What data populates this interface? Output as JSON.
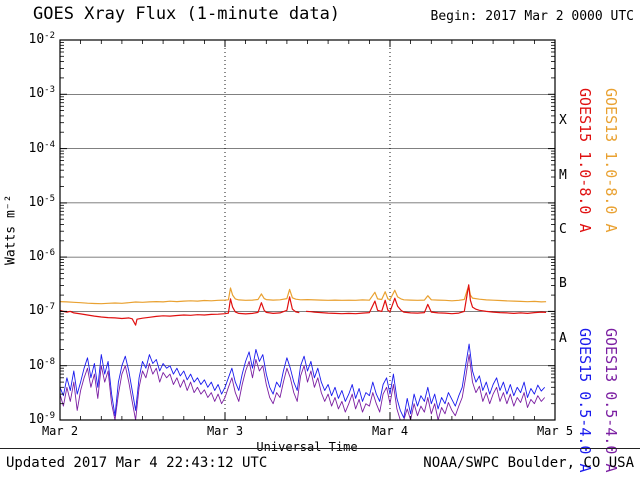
{
  "footer": {
    "updated": "Updated 2017 Mar 4 22:43:12 UTC",
    "source": "NOAA/SWPC Boulder, CO USA"
  },
  "chart_data": {
    "type": "line",
    "title": "GOES Xray Flux (1-minute data)",
    "begin_label": "Begin: 2017 Mar 2 0000 UTC",
    "background": "#ffffff",
    "x_axis": {
      "label": "Universal Time",
      "range_hours": [
        0,
        72
      ],
      "major_tick_hours": 24,
      "minor_tick_hours": 3,
      "ticks": [
        {
          "hour": 0,
          "label": "Mar 2"
        },
        {
          "hour": 24,
          "label": "Mar 3"
        },
        {
          "hour": 48,
          "label": "Mar 4"
        },
        {
          "hour": 72,
          "label": "Mar 5"
        }
      ],
      "day_gridline_hours": [
        24,
        48
      ]
    },
    "y_axis": {
      "label": "Watts m⁻²",
      "log10_range": [
        -9,
        -2
      ],
      "tick_exponents": [
        -2,
        -3,
        -4,
        -5,
        -6,
        -7,
        -8,
        -9
      ],
      "gridline_exponents": [
        -3,
        -4,
        -5,
        -6,
        -7,
        -8
      ]
    },
    "flare_classes": [
      {
        "label": "X",
        "log10_mid": -3.5
      },
      {
        "label": "M",
        "log10_mid": -4.5
      },
      {
        "label": "C",
        "log10_mid": -5.5
      },
      {
        "label": "B",
        "log10_mid": -6.5
      },
      {
        "label": "A",
        "log10_mid": -7.5
      }
    ],
    "series": [
      {
        "name": "goes15-long",
        "label": "GOES15 1.0-8.0 A",
        "color": "#e01010",
        "stroke_width": 1.2,
        "points": [
          [
            0,
            1.05e-07
          ],
          [
            0.5,
            1e-07
          ],
          [
            1,
            9.7e-08
          ],
          [
            1.5,
            1e-07
          ],
          [
            2,
            9.4e-08
          ],
          [
            3,
            9e-08
          ],
          [
            4,
            8.6e-08
          ],
          [
            5,
            8.2e-08
          ],
          [
            6,
            7.9e-08
          ],
          [
            7,
            7.7e-08
          ],
          [
            8,
            7.6e-08
          ],
          [
            9,
            7.4e-08
          ],
          [
            10,
            7.6e-08
          ],
          [
            10.5,
            7.3e-08
          ],
          [
            11,
            5.6e-08
          ],
          [
            11.2,
            7.2e-08
          ],
          [
            12,
            7.5e-08
          ],
          [
            13,
            7.8e-08
          ],
          [
            14,
            8.1e-08
          ],
          [
            15,
            8.3e-08
          ],
          [
            16,
            8.2e-08
          ],
          [
            17,
            8.4e-08
          ],
          [
            18,
            8.6e-08
          ],
          [
            19,
            8.5e-08
          ],
          [
            20,
            8.7e-08
          ],
          [
            21,
            8.6e-08
          ],
          [
            22,
            8.8e-08
          ],
          [
            23,
            8.9e-08
          ],
          [
            24,
            9.1e-08
          ],
          [
            24.5,
            9.3e-08
          ],
          [
            24.8,
            1.7e-07
          ],
          [
            25.1,
            1.2e-07
          ],
          [
            25.5,
            9.8e-08
          ],
          [
            26,
            9.2e-08
          ],
          [
            27,
            9e-08
          ],
          [
            28,
            9.2e-08
          ],
          [
            28.8,
            9.6e-08
          ],
          [
            29.3,
            1.45e-07
          ],
          [
            29.7,
            1.05e-07
          ],
          [
            30,
            9.6e-08
          ],
          [
            31,
            9.2e-08
          ],
          [
            32,
            9.4e-08
          ],
          [
            33,
            1.05e-07
          ],
          [
            33.4,
            1.85e-07
          ],
          [
            33.8,
            1.1e-07
          ],
          [
            34.3,
            9.8e-08
          ],
          [
            34.8,
            9.5e-08
          ],
          [
            35,
            null
          ],
          [
            35.8,
            1e-07
          ],
          [
            36.5,
            9.9e-08
          ],
          [
            37,
            9.7e-08
          ],
          [
            38,
            9.5e-08
          ],
          [
            39,
            9.3e-08
          ],
          [
            40,
            9.2e-08
          ],
          [
            41,
            9.1e-08
          ],
          [
            42,
            9.2e-08
          ],
          [
            43,
            9.1e-08
          ],
          [
            44,
            9.3e-08
          ],
          [
            45,
            9.5e-08
          ],
          [
            45.8,
            1.55e-07
          ],
          [
            46.2,
            1.05e-07
          ],
          [
            46.8,
            1e-07
          ],
          [
            47.3,
            1.6e-07
          ],
          [
            47.7,
            1.05e-07
          ],
          [
            48,
            9.9e-08
          ],
          [
            48.7,
            1.75e-07
          ],
          [
            49.1,
            1.25e-07
          ],
          [
            49.6,
            1.05e-07
          ],
          [
            50,
            9.7e-08
          ],
          [
            51,
            9.4e-08
          ],
          [
            52,
            9.3e-08
          ],
          [
            53,
            9.5e-08
          ],
          [
            53.5,
            1.35e-07
          ],
          [
            54,
            9.7e-08
          ],
          [
            55,
            9.4e-08
          ],
          [
            56,
            9.3e-08
          ],
          [
            57,
            9.1e-08
          ],
          [
            58,
            9.3e-08
          ],
          [
            58.8,
            1e-07
          ],
          [
            59.2,
            2e-07
          ],
          [
            59.45,
            3.1e-07
          ],
          [
            59.7,
            1.6e-07
          ],
          [
            60,
            1.2e-07
          ],
          [
            60.5,
            1.1e-07
          ],
          [
            61,
            1.05e-07
          ],
          [
            62,
            1e-07
          ],
          [
            63,
            9.7e-08
          ],
          [
            64,
            9.5e-08
          ],
          [
            65,
            9.4e-08
          ],
          [
            66,
            9.2e-08
          ],
          [
            67,
            9.4e-08
          ],
          [
            68,
            9.2e-08
          ],
          [
            69,
            9.5e-08
          ],
          [
            70,
            9.7e-08
          ],
          [
            70.7,
            9.6e-08
          ]
        ]
      },
      {
        "name": "goes13-long",
        "label": "GOES13 1.0-8.0 A",
        "color": "#e9a131",
        "stroke_width": 1.2,
        "points": [
          [
            0,
            1.52e-07
          ],
          [
            1,
            1.5e-07
          ],
          [
            2,
            1.47e-07
          ],
          [
            3,
            1.45e-07
          ],
          [
            4,
            1.42e-07
          ],
          [
            5,
            1.4e-07
          ],
          [
            6,
            1.39e-07
          ],
          [
            7,
            1.41e-07
          ],
          [
            8,
            1.43e-07
          ],
          [
            9,
            1.41e-07
          ],
          [
            10,
            1.45e-07
          ],
          [
            11,
            1.49e-07
          ],
          [
            12,
            1.47e-07
          ],
          [
            13,
            1.5e-07
          ],
          [
            14,
            1.52e-07
          ],
          [
            15,
            1.5e-07
          ],
          [
            16,
            1.54e-07
          ],
          [
            17,
            1.52e-07
          ],
          [
            18,
            1.55e-07
          ],
          [
            19,
            1.57e-07
          ],
          [
            20,
            1.55e-07
          ],
          [
            21,
            1.59e-07
          ],
          [
            22,
            1.57e-07
          ],
          [
            23,
            1.6e-07
          ],
          [
            24,
            1.62e-07
          ],
          [
            24.5,
            1.64e-07
          ],
          [
            24.8,
            2.7e-07
          ],
          [
            25.1,
            2e-07
          ],
          [
            25.5,
            1.7e-07
          ],
          [
            26,
            1.63e-07
          ],
          [
            27,
            1.6e-07
          ],
          [
            28,
            1.62e-07
          ],
          [
            28.8,
            1.66e-07
          ],
          [
            29.3,
            2.1e-07
          ],
          [
            29.7,
            1.72e-07
          ],
          [
            30,
            1.65e-07
          ],
          [
            31,
            1.62e-07
          ],
          [
            32,
            1.64e-07
          ],
          [
            33,
            1.72e-07
          ],
          [
            33.4,
            2.55e-07
          ],
          [
            33.8,
            1.78e-07
          ],
          [
            34.3,
            1.68e-07
          ],
          [
            35,
            1.64e-07
          ],
          [
            36,
            1.65e-07
          ],
          [
            37,
            1.63e-07
          ],
          [
            38,
            1.62e-07
          ],
          [
            39,
            1.6e-07
          ],
          [
            40,
            1.62e-07
          ],
          [
            41,
            1.6e-07
          ],
          [
            42,
            1.61e-07
          ],
          [
            43,
            1.6e-07
          ],
          [
            44,
            1.63e-07
          ],
          [
            45,
            1.61e-07
          ],
          [
            45.8,
            2.25e-07
          ],
          [
            46.2,
            1.7e-07
          ],
          [
            46.8,
            1.66e-07
          ],
          [
            47.3,
            2.3e-07
          ],
          [
            47.7,
            1.7e-07
          ],
          [
            48,
            1.65e-07
          ],
          [
            48.7,
            2.45e-07
          ],
          [
            49.1,
            1.85e-07
          ],
          [
            49.6,
            1.7e-07
          ],
          [
            50,
            1.64e-07
          ],
          [
            51,
            1.62e-07
          ],
          [
            52,
            1.6e-07
          ],
          [
            53,
            1.62e-07
          ],
          [
            53.5,
            1.95e-07
          ],
          [
            54,
            1.64e-07
          ],
          [
            55,
            1.62e-07
          ],
          [
            56,
            1.6e-07
          ],
          [
            57,
            1.57e-07
          ],
          [
            58,
            1.6e-07
          ],
          [
            58.8,
            1.66e-07
          ],
          [
            59.2,
            2.4e-07
          ],
          [
            59.45,
            2.95e-07
          ],
          [
            59.7,
            2e-07
          ],
          [
            60,
            1.76e-07
          ],
          [
            61,
            1.68e-07
          ],
          [
            62,
            1.63e-07
          ],
          [
            63,
            1.61e-07
          ],
          [
            64,
            1.59e-07
          ],
          [
            65,
            1.56e-07
          ],
          [
            66,
            1.55e-07
          ],
          [
            67,
            1.53e-07
          ],
          [
            68,
            1.51e-07
          ],
          [
            69,
            1.53e-07
          ],
          [
            70,
            1.5e-07
          ],
          [
            70.7,
            1.51e-07
          ]
        ]
      },
      {
        "name": "goes15-short",
        "label": "GOES15 0.5-4.0 A",
        "color": "#1a1aee",
        "stroke_width": 0.9,
        "t0": 0,
        "dt": 0.5,
        "scale": 1e-09,
        "values": [
          4,
          2.8,
          6,
          3.5,
          8,
          3,
          5,
          9,
          14,
          6,
          11,
          4,
          16,
          7,
          12,
          3,
          1.2,
          5,
          10,
          15,
          8,
          3.5,
          1.5,
          6,
          12,
          9,
          16,
          11,
          13,
          8,
          11,
          9,
          10,
          7,
          9,
          6.5,
          8,
          5.5,
          7,
          5,
          6,
          4.5,
          5.5,
          4,
          5,
          3.5,
          4.5,
          3,
          4,
          6,
          9,
          5,
          3.5,
          7,
          12,
          18,
          9,
          20,
          12,
          16,
          7,
          4,
          3,
          5,
          4,
          8,
          14,
          9,
          5,
          3.5,
          10,
          15,
          8,
          12,
          6,
          9,
          5,
          3.5,
          4.5,
          2.8,
          4,
          2.5,
          3.5,
          2.2,
          3,
          4.5,
          2.5,
          3.8,
          2.2,
          3.2,
          2.8,
          5,
          3,
          2.2,
          4.5,
          6,
          3,
          7,
          2.5,
          1.5,
          1.1,
          2.5,
          1.3,
          3,
          1.8,
          2.8,
          2.2,
          4,
          2,
          3,
          1.6,
          2.6,
          2,
          3.2,
          2.4,
          1.8,
          2.8,
          4,
          10,
          25,
          8,
          5,
          6.5,
          3.5,
          5,
          3,
          4.5,
          6,
          3.5,
          5,
          3,
          4.5,
          2.8,
          4,
          3.2,
          5,
          2.6,
          3.8,
          3,
          4.4,
          3.4,
          4
        ]
      },
      {
        "name": "goes13-short",
        "label": "GOES13 0.5-4.0 A",
        "color": "#7b1fa2",
        "stroke_width": 0.9,
        "t0": 0,
        "dt": 0.5,
        "scale": 1e-09,
        "values": [
          3,
          1.8,
          4,
          2.2,
          5,
          1.5,
          3.5,
          6,
          9,
          4,
          7,
          2.5,
          10,
          5,
          8,
          2,
          0.9,
          3,
          7,
          10,
          5,
          2.2,
          1,
          4,
          8,
          6,
          11,
          7,
          9,
          5,
          7.5,
          6,
          7,
          4.5,
          6,
          4,
          5.5,
          3.5,
          5,
          3.2,
          4,
          3,
          3.6,
          2.6,
          3.2,
          2.2,
          3,
          2,
          2.6,
          4,
          6,
          3.2,
          2.2,
          4.5,
          8,
          12,
          6,
          13,
          8,
          10,
          4.5,
          2.6,
          2,
          3.2,
          2.6,
          5,
          9,
          6,
          3.2,
          2.2,
          6.5,
          10,
          5,
          8,
          4,
          6,
          3.2,
          2.2,
          3,
          1.8,
          2.6,
          1.6,
          2.2,
          1.4,
          2,
          3,
          1.6,
          2.4,
          1.4,
          2,
          1.8,
          3.2,
          2,
          1.4,
          3,
          4,
          2,
          4.5,
          1.6,
          1,
          0.8,
          1.6,
          0.9,
          2,
          1.2,
          1.8,
          1.4,
          2.6,
          1.3,
          2,
          1,
          1.7,
          1.3,
          2.1,
          1.5,
          1.2,
          1.8,
          2.6,
          6,
          16,
          5,
          3.2,
          4.2,
          2.2,
          3.2,
          2,
          3,
          4,
          2.2,
          3.2,
          2,
          3,
          1.8,
          2.6,
          2.1,
          3.2,
          1.7,
          2.4,
          2,
          2.8,
          2.2,
          2.6
        ]
      }
    ]
  }
}
